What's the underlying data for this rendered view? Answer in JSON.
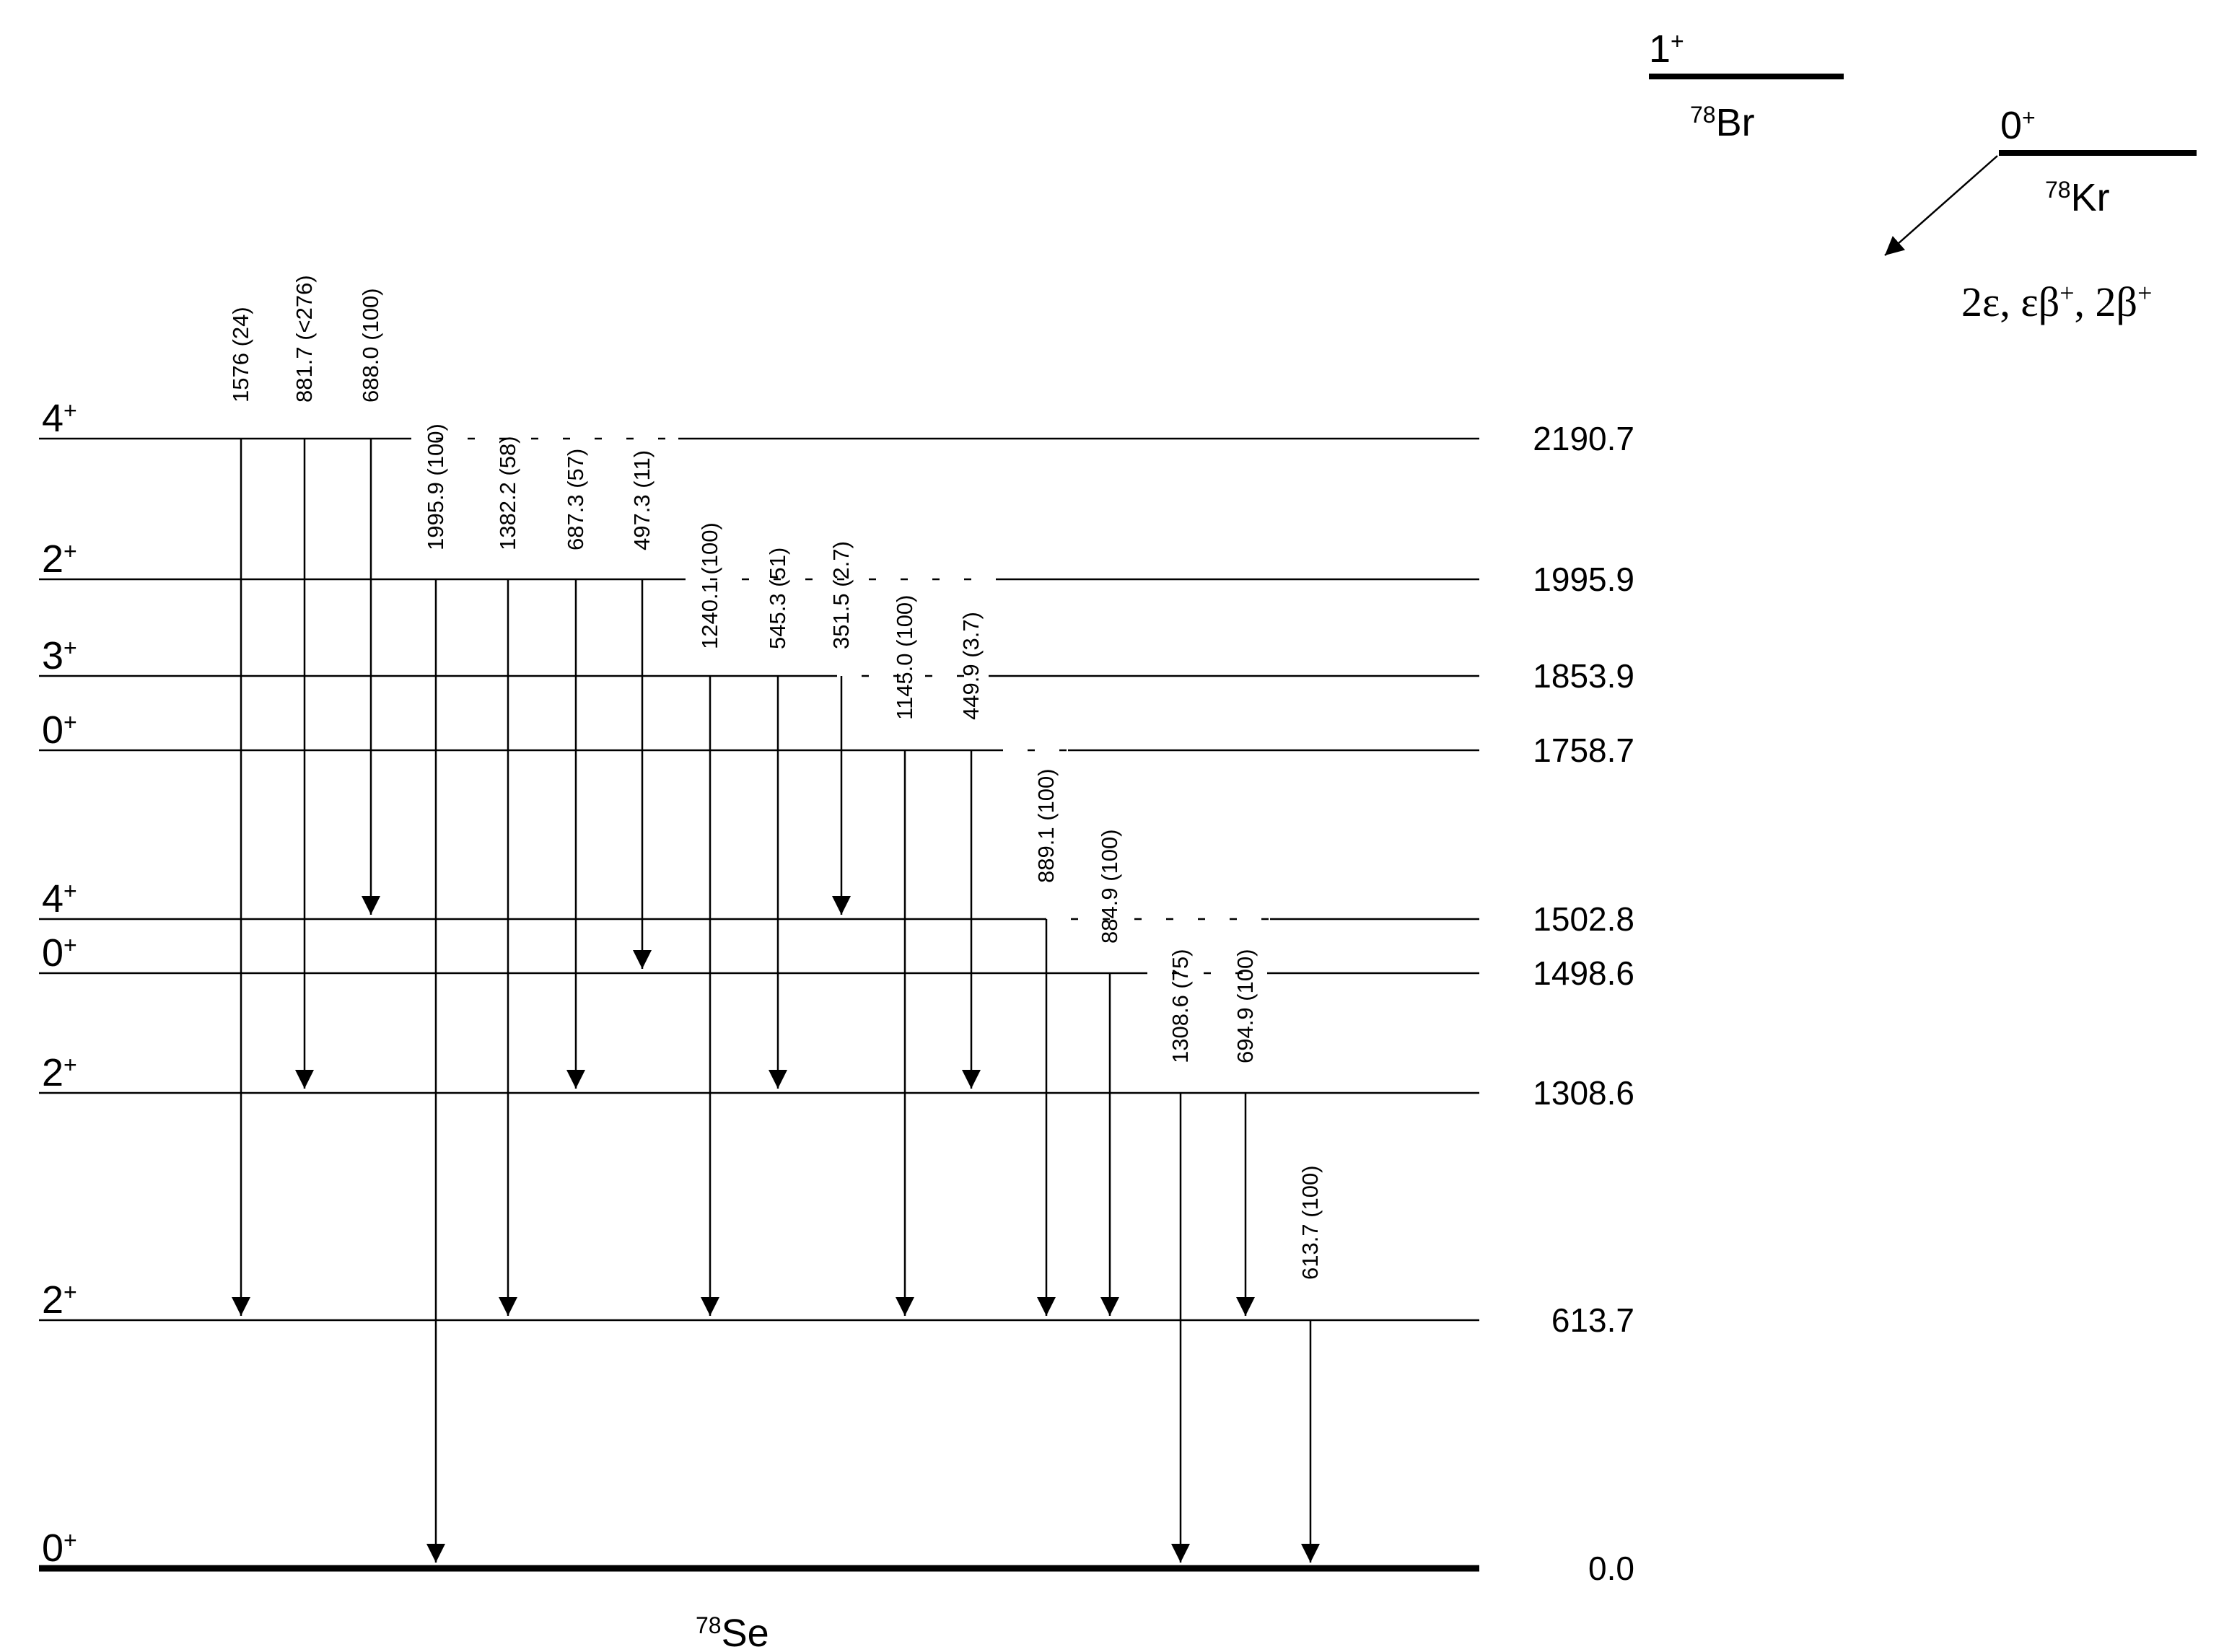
{
  "diagram": {
    "daughter": {
      "mass": "78",
      "symbol": "Se"
    },
    "parents": [
      {
        "id": "br",
        "mass": "78",
        "symbol": "Br",
        "spin": "1",
        "parity": "+"
      },
      {
        "id": "kr",
        "mass": "78",
        "symbol": "Kr",
        "spin": "0",
        "parity": "+"
      }
    ],
    "decay_modes": [
      {
        "base": "2ε, εβ",
        "sup": "+"
      },
      {
        "base": ", 2β",
        "sup": "+"
      }
    ],
    "levels": [
      {
        "id": "L0",
        "energy_label": "0.0",
        "spin": "0",
        "parity": "+",
        "ground": true
      },
      {
        "id": "L613",
        "energy_label": "613.7",
        "spin": "2",
        "parity": "+"
      },
      {
        "id": "L1308",
        "energy_label": "1308.6",
        "spin": "2",
        "parity": "+"
      },
      {
        "id": "L1498",
        "energy_label": "1498.6",
        "spin": "0",
        "parity": "+"
      },
      {
        "id": "L1502",
        "energy_label": "1502.8",
        "spin": "4",
        "parity": "+"
      },
      {
        "id": "L1758",
        "energy_label": "1758.7",
        "spin": "0",
        "parity": "+"
      },
      {
        "id": "L1853",
        "energy_label": "1853.9",
        "spin": "3",
        "parity": "+"
      },
      {
        "id": "L1995",
        "energy_label": "1995.9",
        "spin": "2",
        "parity": "+"
      },
      {
        "id": "L2190",
        "energy_label": "2190.7",
        "spin": "4",
        "parity": "+"
      }
    ],
    "transitions": [
      {
        "from": "L2190",
        "to": "L613",
        "label": "1576 (24)"
      },
      {
        "from": "L2190",
        "to": "L1308",
        "label": "881.7  (<276)"
      },
      {
        "from": "L2190",
        "to": "L1502",
        "label": "688.0 (100)"
      },
      {
        "from": "L1995",
        "to": "L0",
        "label": "1995.9  (100)"
      },
      {
        "from": "L1995",
        "to": "L613",
        "label": "1382.2 (58)"
      },
      {
        "from": "L1995",
        "to": "L1308",
        "label": "687.3 (57)"
      },
      {
        "from": "L1995",
        "to": "L1498",
        "label": "497.3 (11)"
      },
      {
        "from": "L1853",
        "to": "L613",
        "label": "1240.1 (100)"
      },
      {
        "from": "L1853",
        "to": "L1308",
        "label": "545.3 (51)"
      },
      {
        "from": "L1853",
        "to": "L1502",
        "label": "351.5 (2.7)"
      },
      {
        "from": "L1758",
        "to": "L613",
        "label": "1145.0 (100)"
      },
      {
        "from": "L1758",
        "to": "L1308",
        "label": "449.9 (3.7)"
      },
      {
        "from": "L1502",
        "to": "L613",
        "label": "889.1 (100)"
      },
      {
        "from": "L1498",
        "to": "L613",
        "label": "884.9 (100)"
      },
      {
        "from": "L1308",
        "to": "L0",
        "label": "1308.6 (75)"
      },
      {
        "from": "L1308",
        "to": "L613",
        "label": "694.9 (100)"
      },
      {
        "from": "L613",
        "to": "L0",
        "label": "613.7 (100)"
      }
    ]
  }
}
